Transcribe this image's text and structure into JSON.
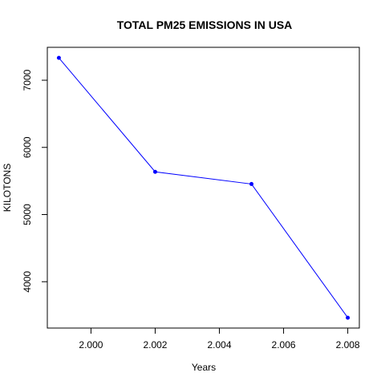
{
  "chart_data": {
    "type": "line",
    "title": "TOTAL PM25 EMISSIONS IN USA",
    "xlabel": "Years",
    "ylabel": "KILOTONS",
    "x": [
      1999,
      2002,
      2005,
      2008
    ],
    "series": [
      {
        "values": [
          7332.967,
          5635.78,
          5454.7,
          3464.206
        ],
        "color": "#0000ff"
      }
    ],
    "xlim": [
      1998.64,
      2008.36
    ],
    "ylim": [
      3310,
      7490
    ],
    "x_ticks": [
      2000,
      2002,
      2004,
      2006,
      2008
    ],
    "x_tick_labels": [
      "2.000",
      "2.002",
      "2.004",
      "2.006",
      "2.008"
    ],
    "y_ticks": [
      4000,
      5000,
      6000,
      7000
    ],
    "y_tick_labels": [
      "4000",
      "5000",
      "6000",
      "7000"
    ],
    "grid": false,
    "legend": "none",
    "colors": {
      "series": "#0000ff",
      "axis": "#000000",
      "background": "#ffffff"
    }
  }
}
